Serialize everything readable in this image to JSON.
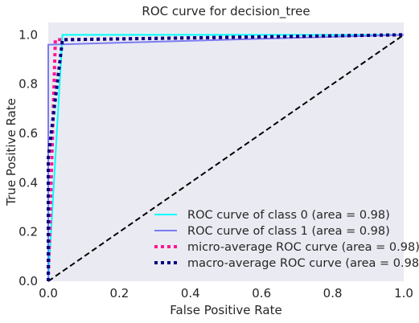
{
  "chart_data": {
    "type": "line",
    "title": "ROC curve for decision_tree",
    "xlabel": "False Positive Rate",
    "ylabel": "True Positive Rate",
    "xlim": [
      0.0,
      1.0
    ],
    "ylim": [
      0.0,
      1.05
    ],
    "xticks": [
      "0.0",
      "0.2",
      "0.4",
      "0.6",
      "0.8",
      "1.0"
    ],
    "yticks": [
      "0.0",
      "0.2",
      "0.4",
      "0.6",
      "0.8",
      "1.0"
    ],
    "grid": false,
    "legend_position": "lower-right",
    "background": "#EAEAF2",
    "series": [
      {
        "name": "ROC curve of class 0 (area = 0.98)",
        "color": "#00FFFF",
        "style": "solid",
        "x": [
          0.0,
          0.04,
          1.0
        ],
        "y": [
          0.0,
          1.0,
          1.0
        ]
      },
      {
        "name": "ROC curve of class 1 (area = 0.98)",
        "color": "#7B7BF2",
        "style": "solid",
        "x": [
          0.0,
          0.0,
          1.0
        ],
        "y": [
          0.0,
          0.96,
          1.0
        ]
      },
      {
        "name": "micro-average ROC curve (area = 0.98)",
        "color": "#FF1493",
        "style": "dotted",
        "x": [
          0.0,
          0.02,
          1.0
        ],
        "y": [
          0.0,
          0.98,
          1.0
        ]
      },
      {
        "name": "macro-average ROC curve (area = 0.98)",
        "color": "#000080",
        "style": "dotted",
        "x": [
          0.0,
          0.0,
          0.04,
          1.0
        ],
        "y": [
          0.0,
          0.5,
          0.98,
          1.0
        ]
      }
    ],
    "diagonal": {
      "x": [
        0.0,
        1.0
      ],
      "y": [
        0.0,
        1.0
      ],
      "color": "#000000",
      "style": "dashed"
    }
  }
}
